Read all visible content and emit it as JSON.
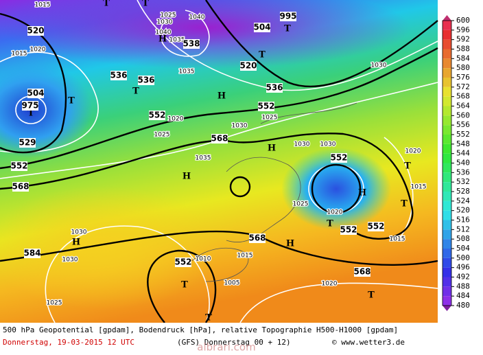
{
  "map_labels": [
    "1015",
    "T",
    "T",
    "1025",
    "1040",
    "995",
    "520",
    "1030",
    "H",
    "1040",
    "1035",
    "538",
    "504",
    "T",
    "520",
    "T",
    "1015",
    "1020",
    "536",
    "536",
    "T",
    "536",
    "1035",
    "H",
    "1030",
    "504",
    "T",
    "T",
    "975",
    "552",
    "552",
    "1020",
    "1025",
    "1030",
    "1025",
    "529",
    "552",
    "568",
    "H",
    "1030",
    "1030",
    "552",
    "1020",
    "T",
    "568",
    "H",
    "1035",
    "H",
    "T",
    "1015",
    "1025",
    "1020",
    "T",
    "552",
    "552",
    "1030",
    "H",
    "1030",
    "584",
    "568",
    "H",
    "1015",
    "552",
    "1010",
    "1015",
    "568",
    "T",
    "1005",
    "1020",
    "T",
    "1025",
    "T"
  ],
  "legend": {
    "ticks": [
      600,
      596,
      592,
      588,
      584,
      580,
      576,
      572,
      568,
      564,
      560,
      556,
      552,
      548,
      544,
      540,
      536,
      532,
      528,
      524,
      520,
      516,
      512,
      508,
      504,
      500,
      496,
      492,
      488,
      484,
      480
    ]
  },
  "footer": {
    "line1": "500 hPa Geopotential [gpdam], Bodendruck [hPa], relative Topographie H500-H1000 [gpdam]",
    "date": "Donnerstag, 19-03-2015   12 UTC",
    "run": "(GFS)   Donnerstag 00 + 12)",
    "credit": "© www.wetter3.de",
    "watermark": "albrari.com"
  }
}
